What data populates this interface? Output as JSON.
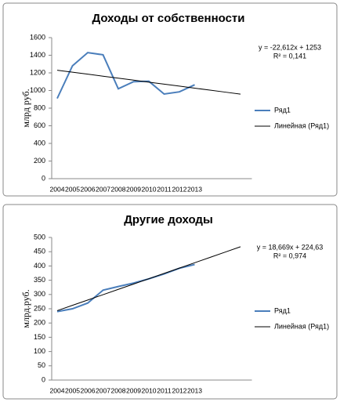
{
  "chart_data": [
    {
      "type": "line",
      "title": "Доходы от собственности",
      "y_label": "млрд руб.",
      "categories": [
        "2004",
        "2005",
        "2006",
        "2007",
        "2008",
        "2009",
        "2010",
        "2011",
        "2012",
        "2013",
        null,
        null,
        null
      ],
      "series": [
        {
          "name": "Ряд1",
          "color": "#4a7ebb",
          "values": [
            910,
            1280,
            1430,
            1405,
            1020,
            1100,
            1105,
            960,
            985,
            1065,
            null,
            null,
            null
          ]
        },
        {
          "name": "Линейная (Ряд1)",
          "color": "#000000",
          "values": [
            1230.4,
            1207.8,
            1185.2,
            1162.6,
            1139.9,
            1117.3,
            1094.7,
            1072.1,
            1049.5,
            1026.9,
            1004.3,
            981.7,
            959.0
          ]
        }
      ],
      "annotations": [
        "y = -22,612x + 1253",
        "R² = 0,141"
      ],
      "ylim": [
        0,
        1600
      ],
      "yticks": [
        0,
        200,
        400,
        600,
        800,
        1000,
        1200,
        1400,
        1600
      ],
      "grid": false,
      "legend": "right"
    },
    {
      "type": "line",
      "title": "Другие доходы",
      "y_label": "млрд.руб.",
      "categories": [
        "2004",
        "2005",
        "2006",
        "2007",
        "2008",
        "2009",
        "2010",
        "2011",
        "2012",
        "2013",
        null,
        null,
        null
      ],
      "series": [
        {
          "name": "Ряд1",
          "color": "#4a7ebb",
          "values": [
            240,
            250,
            270,
            315,
            328,
            340,
            355,
            372,
            392,
            405,
            null,
            null,
            null
          ]
        },
        {
          "name": "Линейная (Ряд1)",
          "color": "#000000",
          "values": [
            243.3,
            262.0,
            280.6,
            299.3,
            318.0,
            336.6,
            355.3,
            374.0,
            392.6,
            411.3,
            430.0,
            448.7,
            467.3
          ]
        }
      ],
      "annotations": [
        "y = 18,669x + 224,63",
        "R² = 0,974"
      ],
      "ylim": [
        0,
        500
      ],
      "yticks": [
        0,
        50,
        100,
        150,
        200,
        250,
        300,
        350,
        400,
        450,
        500
      ],
      "grid": false,
      "legend": "right"
    }
  ]
}
